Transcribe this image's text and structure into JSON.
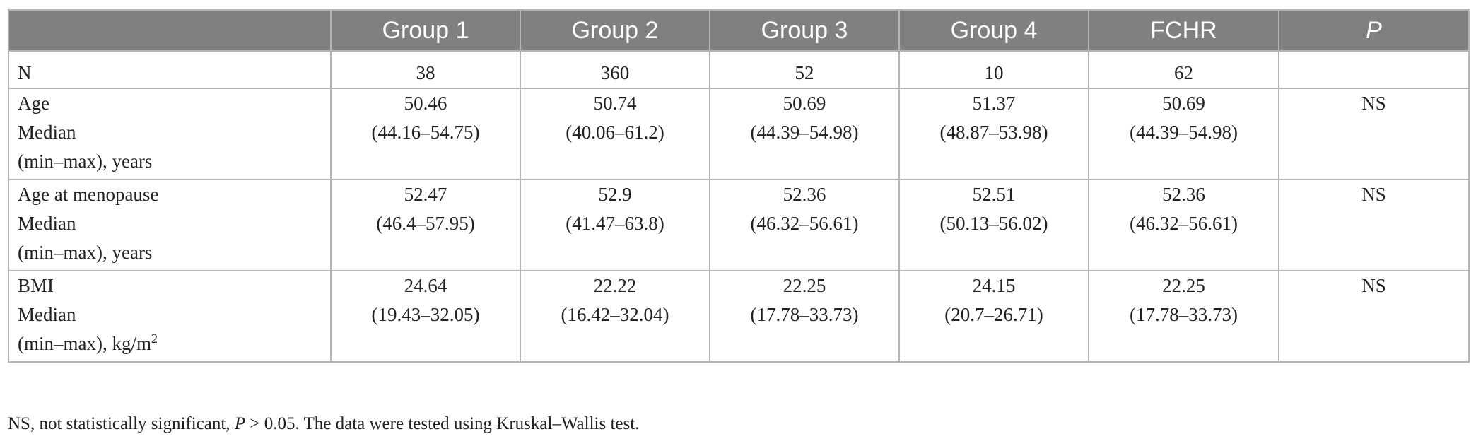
{
  "table": {
    "headers": [
      "",
      "Group 1",
      "Group 2",
      "Group 3",
      "Group 4",
      "FCHR",
      "P"
    ],
    "rows": [
      {
        "label": [
          "N"
        ],
        "cells": [
          [
            "38"
          ],
          [
            "360"
          ],
          [
            "52"
          ],
          [
            "10"
          ],
          [
            "62"
          ],
          [
            ""
          ]
        ]
      },
      {
        "label": [
          "Age",
          "Median",
          "(min–max), years"
        ],
        "cells": [
          [
            "50.46",
            "(44.16–54.75)"
          ],
          [
            "50.74",
            "(40.06–61.2)"
          ],
          [
            "50.69",
            "(44.39–54.98)"
          ],
          [
            "51.37",
            "(48.87–53.98)"
          ],
          [
            "50.69",
            "(44.39–54.98)"
          ],
          [
            "NS"
          ]
        ]
      },
      {
        "label": [
          "Age at menopause",
          "Median",
          "(min–max), years"
        ],
        "cells": [
          [
            "52.47",
            "(46.4–57.95)"
          ],
          [
            "52.9",
            "(41.47–63.8)"
          ],
          [
            "52.36",
            "(46.32–56.61)"
          ],
          [
            "52.51",
            "(50.13–56.02)"
          ],
          [
            "52.36",
            "(46.32–56.61)"
          ],
          [
            "NS"
          ]
        ]
      },
      {
        "label": [
          "BMI",
          "Median",
          "(min–max), kg/m",
          "2"
        ],
        "cells": [
          [
            "24.64",
            "(19.43–32.05)"
          ],
          [
            "22.22",
            "(16.42–32.04)"
          ],
          [
            "22.25",
            "(17.78–33.73)"
          ],
          [
            "24.15",
            "(20.7–26.71)"
          ],
          [
            "22.25",
            "(17.78–33.73)"
          ],
          [
            "NS"
          ]
        ]
      }
    ]
  },
  "footnote": {
    "part1": "NS, not statistically significant, ",
    "p": "P",
    "part2": " > 0.05. The data were tested using Kruskal–Wallis test."
  }
}
